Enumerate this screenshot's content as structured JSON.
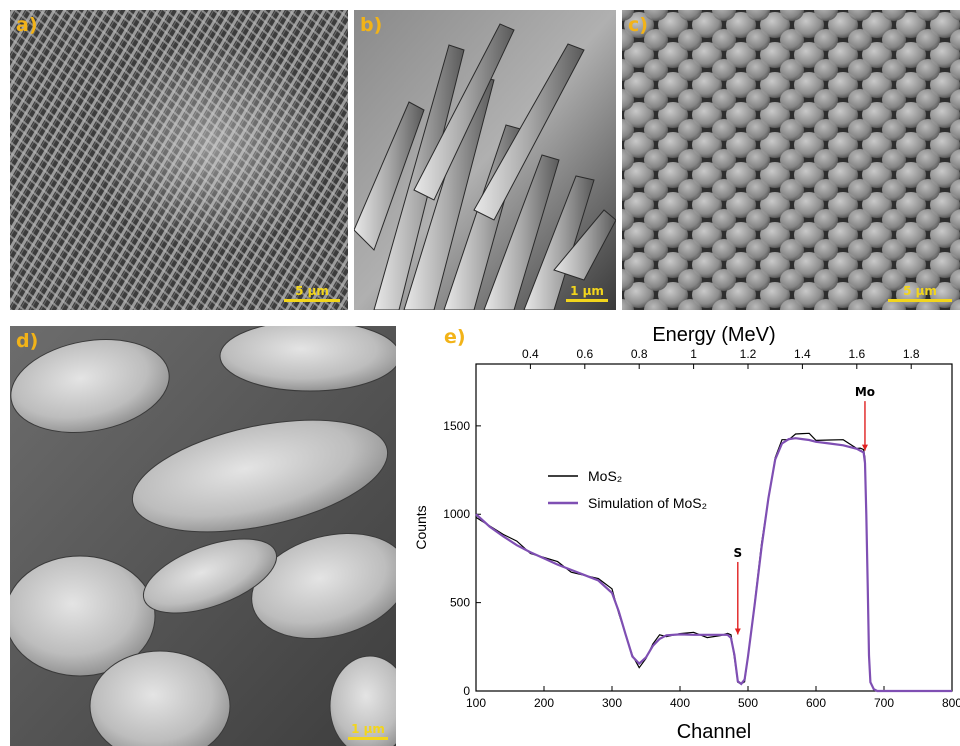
{
  "panels": {
    "a": {
      "label": "a)",
      "scale_bar": "5 µm"
    },
    "b": {
      "label": "b)",
      "scale_bar": "1 µm"
    },
    "c": {
      "label": "c)",
      "scale_bar": "5 µm"
    },
    "d": {
      "label": "d)",
      "scale_bar": "1 µm"
    },
    "e": {
      "label": "e)"
    }
  },
  "colors": {
    "label_orange": "#f2b318",
    "scalebar_yellow": "#f2d51c",
    "measured": "#000000",
    "simulation": "#7f4fb3",
    "marker_red": "#e02020"
  },
  "chart_data": {
    "type": "line",
    "xlabel": "Channel",
    "ylabel": "Counts",
    "top_xlabel": "Energy (MeV)",
    "xlim": [
      100,
      800
    ],
    "ylim": [
      0,
      1850
    ],
    "x_ticks": [
      100,
      200,
      300,
      400,
      500,
      600,
      700,
      800
    ],
    "y_ticks": [
      0,
      500,
      1000,
      1500
    ],
    "top_x_ticks": [
      "0.4",
      "0.6",
      "0.8",
      "1",
      "1.2",
      "1.4",
      "1.6",
      "1.8"
    ],
    "top_x_tick_channels": [
      180,
      260,
      340,
      420,
      500,
      580,
      660,
      740
    ],
    "legend": {
      "items": [
        "MoS₂",
        "Simulation of MoS₂"
      ],
      "placement": "center-left"
    },
    "annotations": [
      {
        "text": "S",
        "x": 485,
        "y_from": 730,
        "y_to": 320
      },
      {
        "text": "Mo",
        "x": 672,
        "y_from": 1640,
        "y_to": 1360
      }
    ],
    "series": [
      {
        "name": "MoS₂",
        "x": [
          100,
          120,
          140,
          160,
          180,
          200,
          220,
          240,
          260,
          280,
          300,
          310,
          320,
          330,
          340,
          350,
          360,
          370,
          380,
          400,
          420,
          440,
          460,
          470,
          475,
          480,
          485,
          490,
          495,
          500,
          510,
          520,
          530,
          540,
          550,
          560,
          570,
          580,
          590,
          600,
          620,
          640,
          660,
          665,
          670,
          672,
          674,
          676,
          678,
          680,
          685,
          690,
          700,
          750,
          800
        ],
        "y": [
          1000,
          940,
          880,
          830,
          790,
          755,
          720,
          690,
          660,
          630,
          560,
          450,
          320,
          190,
          150,
          190,
          260,
          300,
          320,
          325,
          320,
          320,
          320,
          320,
          300,
          200,
          50,
          40,
          70,
          200,
          500,
          820,
          1100,
          1320,
          1410,
          1440,
          1460,
          1450,
          1440,
          1430,
          1420,
          1410,
          1390,
          1380,
          1360,
          1300,
          1000,
          600,
          200,
          50,
          10,
          0,
          0,
          0,
          0
        ]
      },
      {
        "name": "Simulation of MoS₂",
        "x": [
          100,
          120,
          140,
          160,
          180,
          200,
          220,
          240,
          260,
          280,
          300,
          310,
          320,
          330,
          340,
          350,
          360,
          370,
          380,
          400,
          420,
          440,
          460,
          470,
          475,
          480,
          485,
          490,
          495,
          500,
          510,
          520,
          530,
          540,
          550,
          560,
          570,
          580,
          590,
          600,
          620,
          640,
          660,
          665,
          670,
          672,
          674,
          676,
          678,
          680,
          685,
          690,
          700,
          750,
          800
        ],
        "y": [
          1000,
          930,
          875,
          825,
          785,
          750,
          715,
          685,
          655,
          625,
          555,
          450,
          320,
          195,
          155,
          190,
          255,
          295,
          315,
          320,
          318,
          318,
          318,
          318,
          300,
          205,
          55,
          40,
          65,
          195,
          495,
          815,
          1090,
          1310,
          1400,
          1425,
          1430,
          1425,
          1420,
          1410,
          1400,
          1390,
          1370,
          1360,
          1350,
          1290,
          1000,
          600,
          200,
          50,
          10,
          0,
          0,
          0,
          0
        ]
      }
    ]
  }
}
